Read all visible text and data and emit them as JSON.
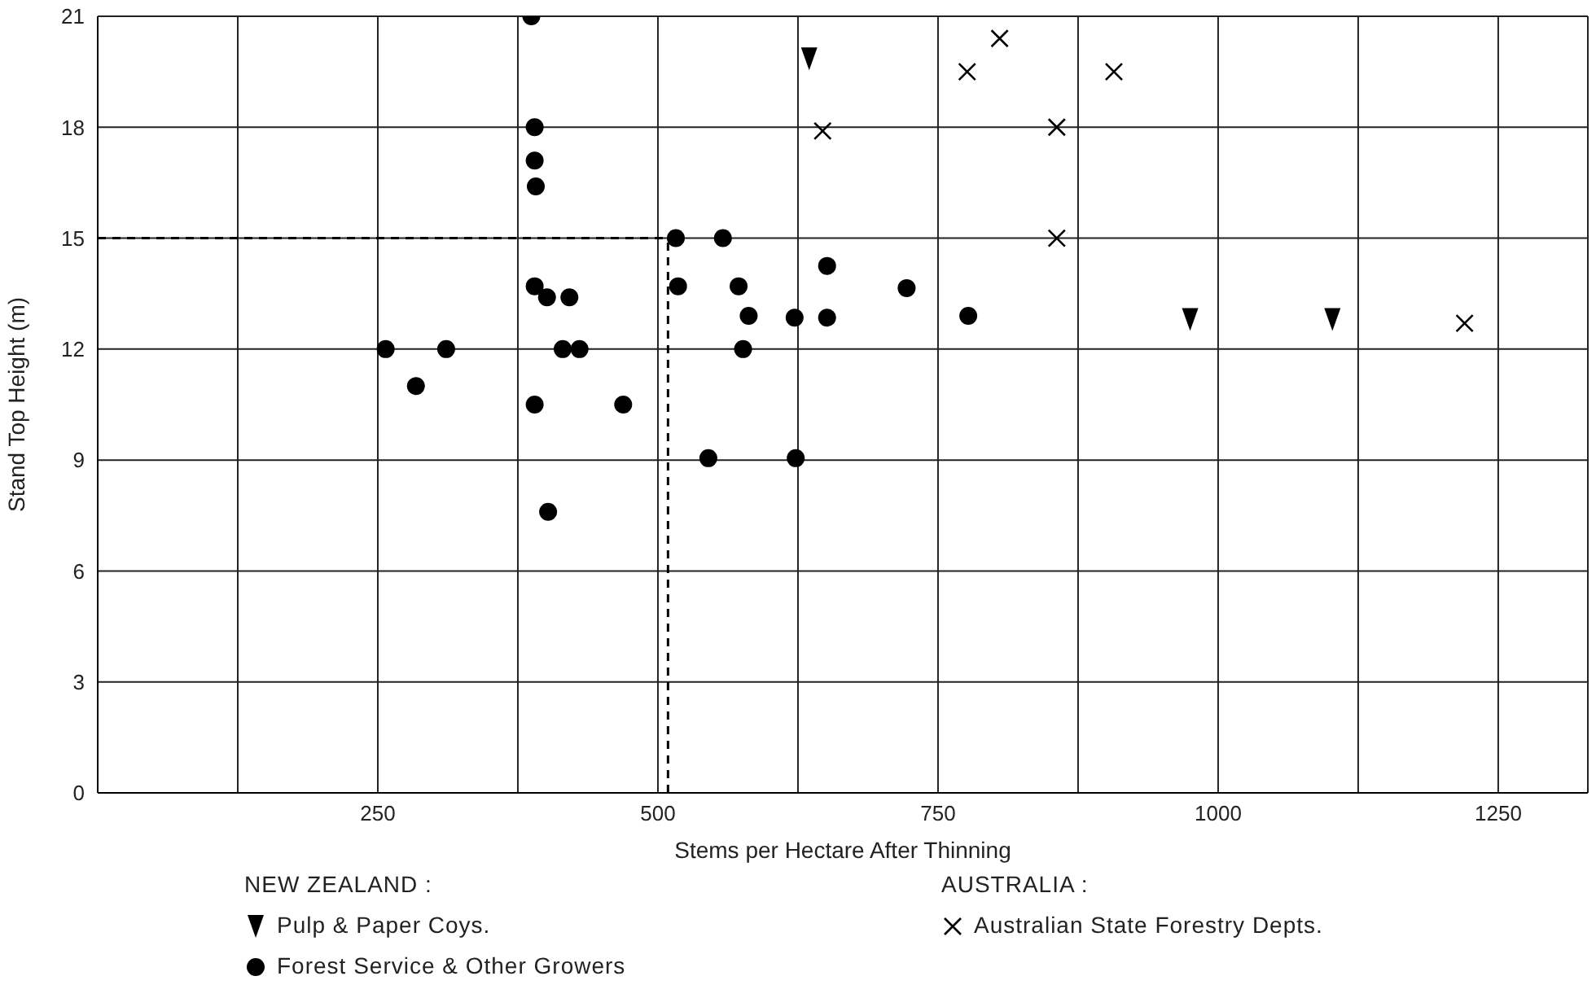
{
  "chart_data": {
    "type": "scatter",
    "xlabel": "Stems per Hectare After Thinning",
    "ylabel": "Stand Top Height (m)",
    "xlim": [
      0,
      1330
    ],
    "xticks": [
      {
        "value": 125,
        "label": null
      },
      250,
      {
        "value": 375,
        "label": null
      },
      500,
      {
        "value": 625,
        "label": null
      },
      750,
      {
        "value": 875,
        "label": null
      },
      1000,
      {
        "value": 1125,
        "label": null
      },
      1250
    ],
    "ylim": [
      0,
      21
    ],
    "yticks": [
      0,
      3,
      6,
      9,
      12,
      15,
      18,
      21
    ],
    "grid": true,
    "legend": "bottom",
    "annotations": [
      "NEW ZEALAND :",
      "AUSTRALIA :"
    ],
    "ref_lines": [
      {
        "axis": "y",
        "value": 15,
        "line_style": "dashed",
        "color": "#000000"
      },
      {
        "axis": "x",
        "value": 509,
        "line_style": "dashed",
        "color": "#000000"
      }
    ],
    "series": [
      {
        "name": "Pulp & Paper Coys.",
        "color": "#000000",
        "marker": "triangle",
        "x": [
          635,
          975,
          1102
        ],
        "values": [
          19.85,
          12.8,
          12.8
        ]
      },
      {
        "name": "Forest Service & Other Growers",
        "color": "#000000",
        "marker": "circle",
        "x": [
          387,
          390,
          390,
          391,
          390,
          401,
          421,
          257,
          311,
          284,
          415,
          430,
          390,
          469,
          402,
          516,
          558,
          518,
          572,
          651,
          581,
          622,
          651,
          576,
          545,
          623,
          722,
          777
        ],
        "values": [
          21,
          18,
          17.1,
          16.4,
          13.7,
          13.4,
          13.4,
          12,
          12,
          11,
          12,
          12,
          10.5,
          10.5,
          7.6,
          15,
          15,
          13.7,
          13.7,
          14.25,
          12.9,
          12.85,
          12.85,
          12,
          9.05,
          9.05,
          13.65,
          12.9
        ]
      },
      {
        "name": "Australian State Forestry Depts.",
        "color": "#000000",
        "marker": "cross",
        "x": [
          647,
          776,
          805,
          907,
          856,
          856,
          1220
        ],
        "values": [
          17.9,
          19.5,
          20.4,
          19.5,
          18,
          15,
          12.7
        ]
      }
    ]
  }
}
